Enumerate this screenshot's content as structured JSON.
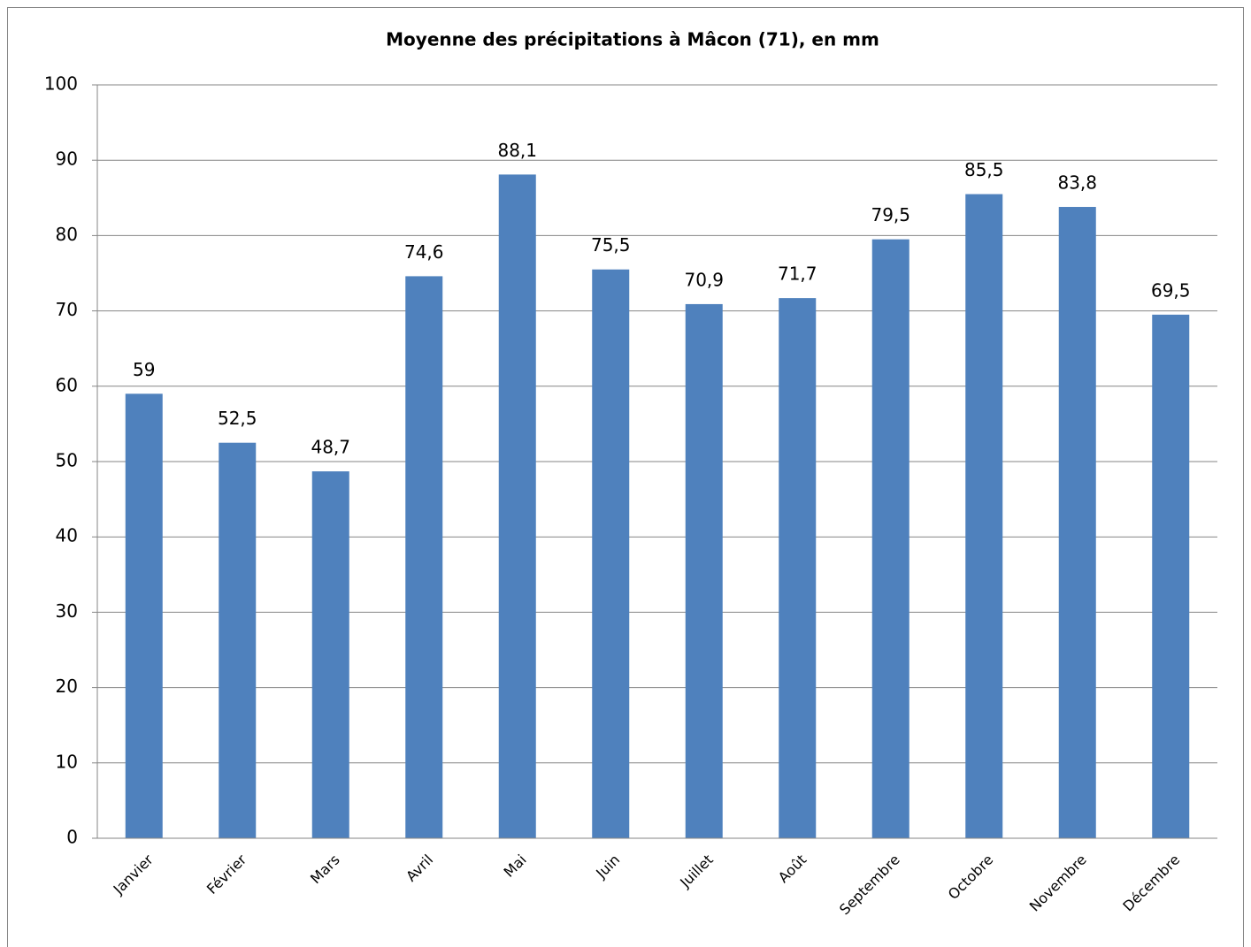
{
  "chart_data": {
    "type": "bar",
    "title": "Moyenne des précipitations à Mâcon (71), en mm",
    "categories": [
      "Janvier",
      "Février",
      "Mars",
      "Avril",
      "Mai",
      "Juin",
      "Juillet",
      "Août",
      "Septembre",
      "Octobre",
      "Novembre",
      "Décembre"
    ],
    "values": [
      59,
      52.5,
      48.7,
      74.6,
      88.1,
      75.5,
      70.9,
      71.7,
      79.5,
      85.5,
      83.8,
      69.5
    ],
    "value_labels": [
      "59",
      "52,5",
      "48,7",
      "74,6",
      "88,1",
      "75,5",
      "70,9",
      "71,7",
      "79,5",
      "85,5",
      "83,8",
      "69,5"
    ],
    "color": "#4f81bd",
    "ylim": [
      0,
      100
    ],
    "yticks": [
      0,
      10,
      20,
      30,
      40,
      50,
      60,
      70,
      80,
      90,
      100
    ],
    "grid": true
  }
}
